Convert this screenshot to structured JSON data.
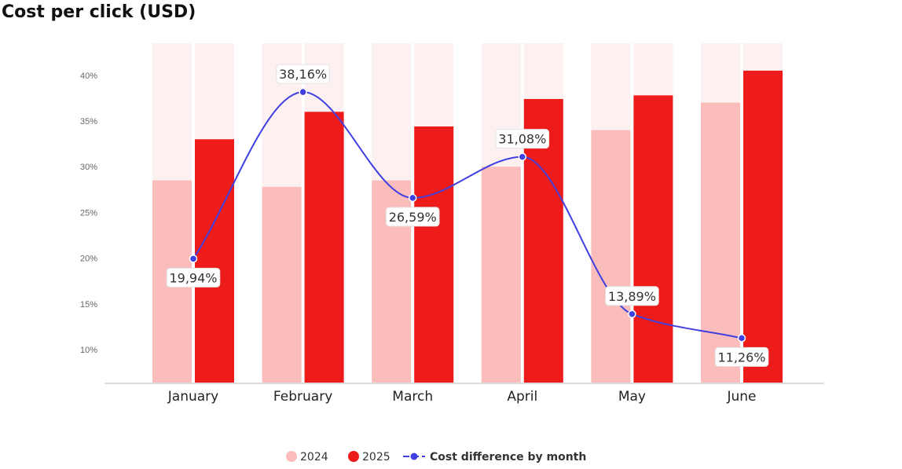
{
  "chart_data": {
    "type": "bar",
    "title": "Cost per click (USD)",
    "categories": [
      "January",
      "February",
      "March",
      "April",
      "May",
      "June"
    ],
    "ylim": [
      6.4,
      43.5
    ],
    "yticks": [
      10,
      15,
      20,
      25,
      30,
      35,
      40
    ],
    "ytick_labels": [
      "10%",
      "15%",
      "20%",
      "25%",
      "30%",
      "35%",
      "40%"
    ],
    "grid": false,
    "legend_position": "bottom",
    "series": [
      {
        "name": "2024",
        "kind": "bar",
        "color": "#fbbcbc",
        "values": [
          28.5,
          27.8,
          28.5,
          30.0,
          34.0,
          37.0
        ]
      },
      {
        "name": "2025",
        "kind": "bar",
        "color": "#ee1b1b",
        "values": [
          33.0,
          36.0,
          34.4,
          37.4,
          37.8,
          40.5
        ]
      },
      {
        "name": "Cost difference by month",
        "kind": "line",
        "color": "#4040e0",
        "values": [
          19.94,
          38.16,
          26.59,
          31.08,
          13.89,
          11.26
        ],
        "labels": [
          "19,94%",
          "38,16%",
          "26,59%",
          "31,08%",
          "13,89%",
          "11,26%"
        ]
      }
    ],
    "background_bar_color": "#fdf0f0"
  }
}
